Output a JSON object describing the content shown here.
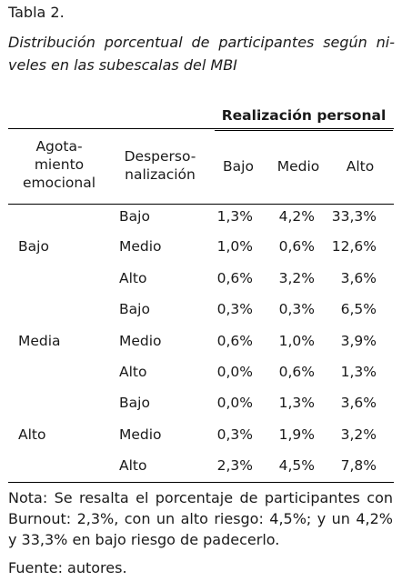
{
  "table_label": "Tabla 2.",
  "caption": "Distribución porcentual de participantes según ni-veles en las subescalas del MBI",
  "header": {
    "group_title": "Realización personal",
    "col_agotamiento": [
      "Agota-",
      "miento",
      "emocional"
    ],
    "col_despersonalizacion": [
      "Desperso-",
      "nalización"
    ],
    "cols": [
      "Bajo",
      "Medio",
      "Alto"
    ]
  },
  "groups": [
    {
      "label": "Bajo",
      "rows": [
        {
          "level": "Bajo",
          "values": [
            "1,3%",
            "4,2%",
            "33,3%"
          ]
        },
        {
          "level": "Medio",
          "values": [
            "1,0%",
            "0,6%",
            "12,6%"
          ]
        },
        {
          "level": "Alto",
          "values": [
            "0,6%",
            "3,2%",
            "3,6%"
          ]
        }
      ]
    },
    {
      "label": "Media",
      "rows": [
        {
          "level": "Bajo",
          "values": [
            "0,3%",
            "0,3%",
            "6,5%"
          ]
        },
        {
          "level": "Medio",
          "values": [
            "0,6%",
            "1,0%",
            "3,9%"
          ]
        },
        {
          "level": "Alto",
          "values": [
            "0,0%",
            "0,6%",
            "1,3%"
          ]
        }
      ]
    },
    {
      "label": "Alto",
      "rows": [
        {
          "level": "Bajo",
          "values": [
            "0,0%",
            "1,3%",
            "3,6%"
          ]
        },
        {
          "level": "Medio",
          "values": [
            "0,3%",
            "1,9%",
            "3,2%"
          ]
        },
        {
          "level": "Alto",
          "values": [
            "2,3%",
            "4,5%",
            "7,8%"
          ]
        }
      ]
    }
  ],
  "note": "Nota: Se resalta el porcentaje de participantes con Burnout: 2,3%, con un alto riesgo: 4,5%; y un 4,2% y 33,3% en bajo riesgo de padecerlo.",
  "source": "Fuente: autores."
}
